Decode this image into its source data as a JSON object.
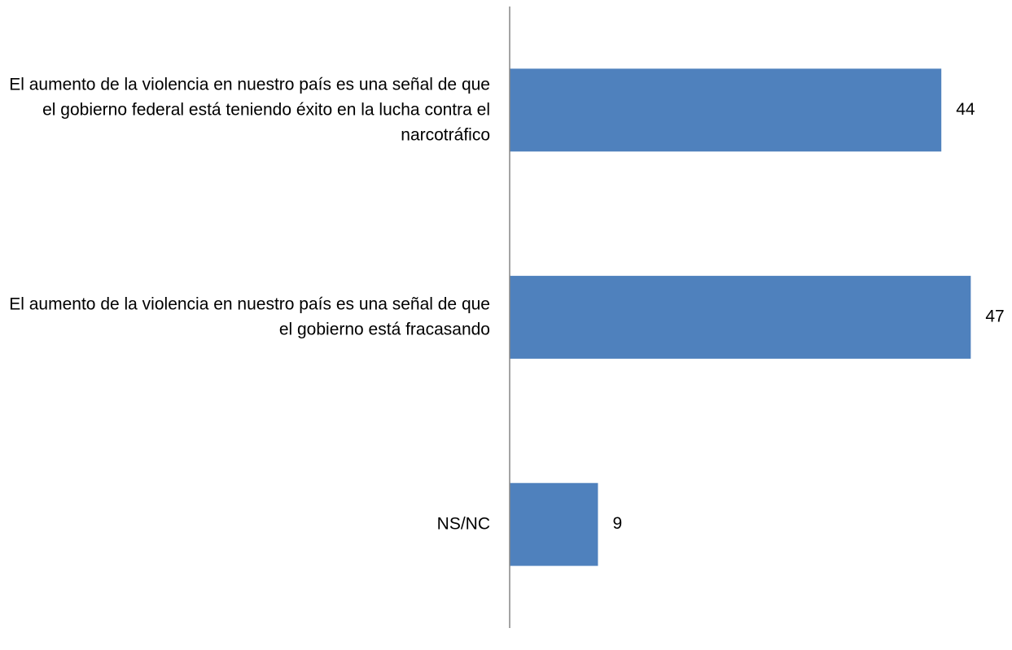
{
  "chart_data": {
    "type": "bar",
    "orientation": "horizontal",
    "categories": [
      "El aumento de la violencia en nuestro país es una señal de que el gobierno federal está teniendo éxito en la lucha contra el narcotráfico",
      "El aumento de la violencia en nuestro país es una señal de que el gobierno está fracasando",
      "NS/NC"
    ],
    "values": [
      44,
      47,
      9
    ],
    "color": "#4f81bd",
    "xlim": [
      0,
      50
    ],
    "grid": false
  }
}
